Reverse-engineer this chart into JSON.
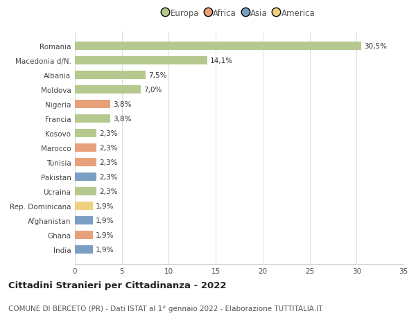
{
  "countries": [
    "Romania",
    "Macedonia d/N.",
    "Albania",
    "Moldova",
    "Nigeria",
    "Francia",
    "Kosovo",
    "Marocco",
    "Tunisia",
    "Pakistan",
    "Ucraina",
    "Rep. Dominicana",
    "Afghanistan",
    "Ghana",
    "India"
  ],
  "values": [
    30.5,
    14.1,
    7.5,
    7.0,
    3.8,
    3.8,
    2.3,
    2.3,
    2.3,
    2.3,
    2.3,
    1.9,
    1.9,
    1.9,
    1.9
  ],
  "labels": [
    "30,5%",
    "14,1%",
    "7,5%",
    "7,0%",
    "3,8%",
    "3,8%",
    "2,3%",
    "2,3%",
    "2,3%",
    "2,3%",
    "2,3%",
    "1,9%",
    "1,9%",
    "1,9%",
    "1,9%"
  ],
  "continents": [
    "Europa",
    "Europa",
    "Europa",
    "Europa",
    "Africa",
    "Europa",
    "Europa",
    "Africa",
    "Africa",
    "Asia",
    "Europa",
    "America",
    "Asia",
    "Africa",
    "Asia"
  ],
  "continent_colors": {
    "Europa": "#b5c98e",
    "Africa": "#e8a07a",
    "Asia": "#7a9fc2",
    "America": "#f0d080"
  },
  "legend_order": [
    "Europa",
    "Africa",
    "Asia",
    "America"
  ],
  "legend_colors": [
    "#b5c98e",
    "#e8a07a",
    "#7a9fc2",
    "#f0d080"
  ],
  "xlim": [
    0,
    35
  ],
  "xticks": [
    0,
    5,
    10,
    15,
    20,
    25,
    30,
    35
  ],
  "title": "Cittadini Stranieri per Cittadinanza - 2022",
  "subtitle": "COMUNE DI BERCETO (PR) - Dati ISTAT al 1° gennaio 2022 - Elaborazione TUTTITALIA.IT",
  "background_color": "#ffffff",
  "bar_height": 0.55,
  "title_fontsize": 9.5,
  "subtitle_fontsize": 7.5,
  "label_fontsize": 7.5,
  "tick_fontsize": 7.5,
  "legend_fontsize": 8.5
}
